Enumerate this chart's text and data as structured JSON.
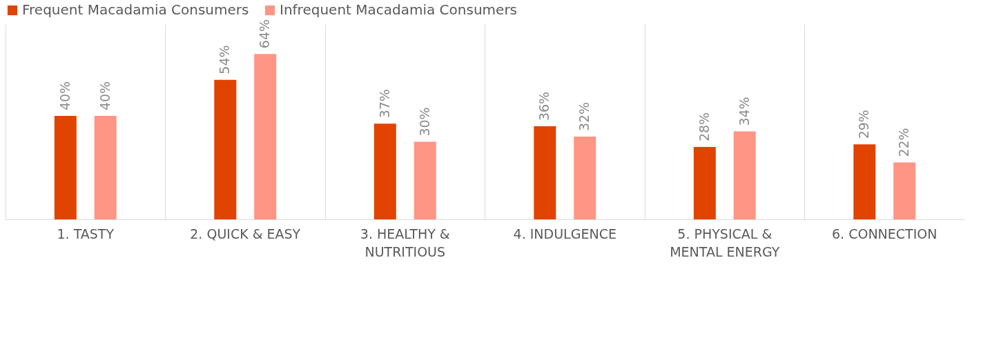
{
  "chart_data": {
    "type": "bar",
    "categories": [
      "1. TASTY",
      "2. QUICK & EASY",
      "3. HEALTHY & NUTRITIOUS",
      "4. INDULGENCE",
      "5. PHYSICAL & MENTAL ENERGY",
      "6. CONNECTION"
    ],
    "series": [
      {
        "name": "Frequent Macadamia Consumers",
        "color": "#e04400",
        "values": [
          40,
          54,
          37,
          36,
          28,
          29
        ],
        "value_labels": [
          "40%",
          "54%",
          "37%",
          "36%",
          "28%",
          "29%"
        ]
      },
      {
        "name": "Infrequent Macadamia Consumers",
        "color": "#ff9584",
        "values": [
          40,
          64,
          30,
          32,
          34,
          22
        ],
        "value_labels": [
          "40%",
          "64%",
          "30%",
          "32%",
          "34%",
          "22%"
        ]
      }
    ],
    "legend": "top",
    "grid": "x"
  }
}
